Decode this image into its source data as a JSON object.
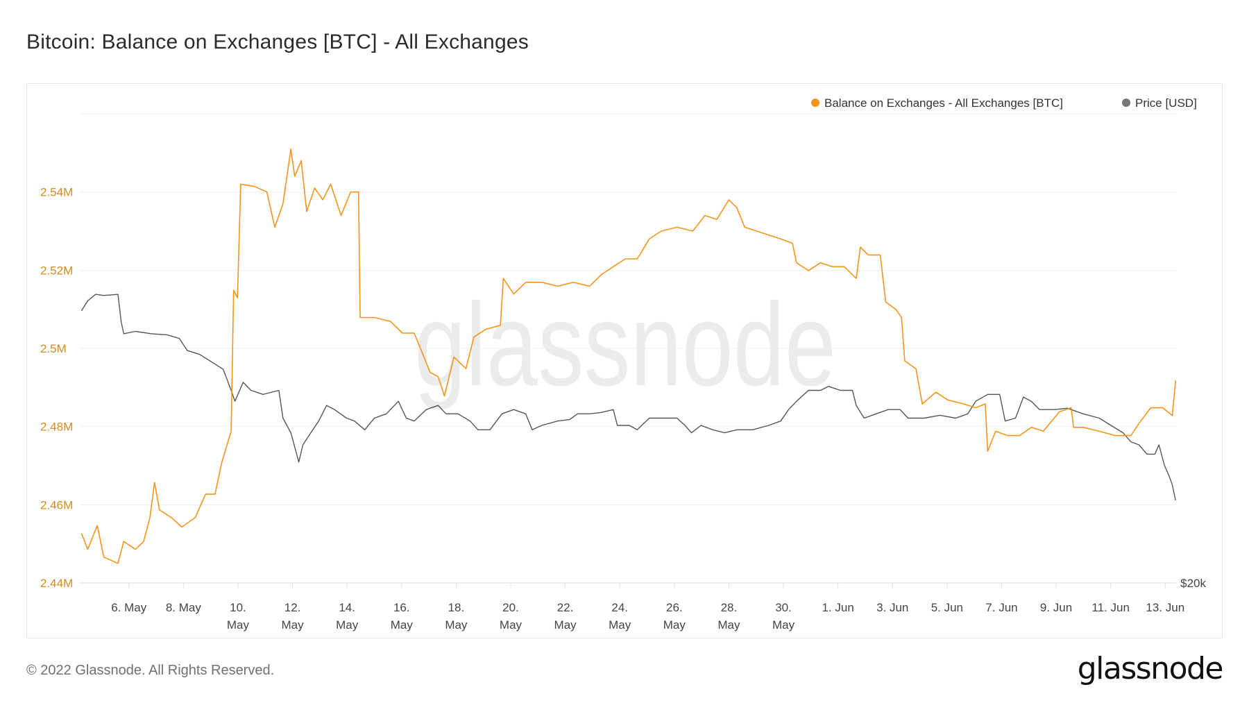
{
  "title": "Bitcoin: Balance on Exchanges [BTC] - All Exchanges",
  "footer": "© 2022 Glassnode. All Rights Reserved.",
  "logo": "glassnode",
  "watermark": "glassnode",
  "chart_data": {
    "type": "line",
    "title": "Bitcoin: Balance on Exchanges [BTC] - All Exchanges",
    "x_unit": "day (1 = 1 May 2022, 32 = 1 Jun 2022)",
    "xlim": [
      4.2,
      44.4
    ],
    "legend_position": "top-right",
    "grid": true,
    "colors": {
      "balance": "#f7931a",
      "price": "#555555",
      "axis_left": "#d98a1c",
      "axis_right": "#444444"
    },
    "legend": [
      "Balance on Exchanges - All Exchanges [BTC]",
      "Price [USD]"
    ],
    "y_left": {
      "ticks": [
        2.44,
        2.46,
        2.48,
        2.5,
        2.52,
        2.54,
        2.56
      ],
      "labels": [
        "2.44M",
        "2.46M",
        "2.48M",
        "2.5M",
        "2.52M",
        "2.54M",
        ""
      ],
      "ylim": [
        2.44,
        2.56
      ]
    },
    "y_right": {
      "scale": "log",
      "labels": [
        "$20k"
      ],
      "ticks": [
        20
      ]
    },
    "x_ticks": [
      {
        "day": 6,
        "l1": "6. May",
        "l2": ""
      },
      {
        "day": 8,
        "l1": "8. May",
        "l2": ""
      },
      {
        "day": 10,
        "l1": "10.",
        "l2": "May"
      },
      {
        "day": 12,
        "l1": "12.",
        "l2": "May"
      },
      {
        "day": 14,
        "l1": "14.",
        "l2": "May"
      },
      {
        "day": 16,
        "l1": "16.",
        "l2": "May"
      },
      {
        "day": 18,
        "l1": "18.",
        "l2": "May"
      },
      {
        "day": 20,
        "l1": "20.",
        "l2": "May"
      },
      {
        "day": 22,
        "l1": "22.",
        "l2": "May"
      },
      {
        "day": 24,
        "l1": "24.",
        "l2": "May"
      },
      {
        "day": 26,
        "l1": "26.",
        "l2": "May"
      },
      {
        "day": 28,
        "l1": "28.",
        "l2": "May"
      },
      {
        "day": 30,
        "l1": "30.",
        "l2": "May"
      },
      {
        "day": 32,
        "l1": "1. Jun",
        "l2": ""
      },
      {
        "day": 34,
        "l1": "3. Jun",
        "l2": ""
      },
      {
        "day": 36,
        "l1": "5. Jun",
        "l2": ""
      },
      {
        "day": 38,
        "l1": "7. Jun",
        "l2": ""
      },
      {
        "day": 40,
        "l1": "9. Jun",
        "l2": ""
      },
      {
        "day": 42,
        "l1": "11. Jun",
        "l2": ""
      },
      {
        "day": 44,
        "l1": "13. Jun",
        "l2": ""
      }
    ],
    "series": [
      {
        "name": "Balance on Exchanges - All Exchanges [BTC]",
        "unit": "M BTC",
        "points": [
          [
            4.26,
            2.4527
          ],
          [
            4.49,
            2.4486
          ],
          [
            4.84,
            2.4547
          ],
          [
            5.08,
            2.4466
          ],
          [
            5.6,
            2.445
          ],
          [
            5.81,
            2.4506
          ],
          [
            6.24,
            2.4486
          ],
          [
            6.54,
            2.4506
          ],
          [
            6.77,
            2.4567
          ],
          [
            6.94,
            2.4657
          ],
          [
            7.12,
            2.4587
          ],
          [
            7.56,
            2.4567
          ],
          [
            7.94,
            2.4543
          ],
          [
            8.43,
            2.4567
          ],
          [
            8.81,
            2.4627
          ],
          [
            9.16,
            2.4627
          ],
          [
            9.4,
            2.4707
          ],
          [
            9.75,
            2.4788
          ],
          [
            9.84,
            2.5149
          ],
          [
            9.98,
            2.5129
          ],
          [
            10.1,
            2.542
          ],
          [
            10.62,
            2.5414
          ],
          [
            11.06,
            2.54
          ],
          [
            11.35,
            2.531
          ],
          [
            11.65,
            2.537
          ],
          [
            11.94,
            2.551
          ],
          [
            12.08,
            2.544
          ],
          [
            12.32,
            2.548
          ],
          [
            12.52,
            2.535
          ],
          [
            12.81,
            2.541
          ],
          [
            13.11,
            2.538
          ],
          [
            13.4,
            2.542
          ],
          [
            13.78,
            2.534
          ],
          [
            14.13,
            2.54
          ],
          [
            14.42,
            2.54
          ],
          [
            14.48,
            2.5079
          ],
          [
            15.0,
            2.5079
          ],
          [
            15.59,
            2.5069
          ],
          [
            16.03,
            2.5039
          ],
          [
            16.46,
            2.5039
          ],
          [
            16.76,
            2.4988
          ],
          [
            17.05,
            2.4938
          ],
          [
            17.34,
            2.4928
          ],
          [
            17.57,
            2.4878
          ],
          [
            17.92,
            2.4978
          ],
          [
            18.36,
            2.4948
          ],
          [
            18.65,
            2.5029
          ],
          [
            19.09,
            2.5049
          ],
          [
            19.62,
            2.5059
          ],
          [
            19.73,
            2.5179
          ],
          [
            20.11,
            2.5139
          ],
          [
            20.55,
            2.5169
          ],
          [
            21.14,
            2.5169
          ],
          [
            21.72,
            2.5159
          ],
          [
            22.3,
            2.5169
          ],
          [
            22.89,
            2.5159
          ],
          [
            23.33,
            2.5189
          ],
          [
            23.76,
            2.5209
          ],
          [
            24.2,
            2.5229
          ],
          [
            24.64,
            2.5229
          ],
          [
            25.08,
            2.528
          ],
          [
            25.52,
            2.53
          ],
          [
            26.1,
            2.531
          ],
          [
            26.68,
            2.53
          ],
          [
            27.12,
            2.534
          ],
          [
            27.56,
            2.533
          ],
          [
            28.0,
            2.538
          ],
          [
            28.29,
            2.536
          ],
          [
            28.58,
            2.531
          ],
          [
            29.02,
            2.53
          ],
          [
            29.46,
            2.529
          ],
          [
            29.9,
            2.528
          ],
          [
            30.33,
            2.5269
          ],
          [
            30.48,
            2.5219
          ],
          [
            30.92,
            2.5199
          ],
          [
            31.36,
            2.5219
          ],
          [
            31.79,
            2.5209
          ],
          [
            32.23,
            2.5209
          ],
          [
            32.67,
            2.5179
          ],
          [
            32.82,
            2.5259
          ],
          [
            33.11,
            2.5239
          ],
          [
            33.55,
            2.5239
          ],
          [
            33.75,
            2.5119
          ],
          [
            34.13,
            2.5099
          ],
          [
            34.33,
            2.5079
          ],
          [
            34.45,
            2.4968
          ],
          [
            34.86,
            2.4948
          ],
          [
            35.09,
            2.4858
          ],
          [
            35.59,
            2.4888
          ],
          [
            36.03,
            2.4868
          ],
          [
            36.61,
            2.4858
          ],
          [
            37.05,
            2.4848
          ],
          [
            37.4,
            2.4858
          ],
          [
            37.49,
            2.4737
          ],
          [
            37.78,
            2.4788
          ],
          [
            38.22,
            2.4777
          ],
          [
            38.66,
            2.4777
          ],
          [
            39.09,
            2.4798
          ],
          [
            39.53,
            2.4788
          ],
          [
            40.12,
            2.4838
          ],
          [
            40.55,
            2.4848
          ],
          [
            40.64,
            2.4798
          ],
          [
            40.99,
            2.4798
          ],
          [
            41.58,
            2.4788
          ],
          [
            42.16,
            2.4777
          ],
          [
            42.74,
            2.4777
          ],
          [
            43.04,
            2.4808
          ],
          [
            43.47,
            2.4848
          ],
          [
            43.91,
            2.4848
          ],
          [
            44.26,
            2.4828
          ],
          [
            44.38,
            2.4918
          ]
        ]
      },
      {
        "name": "Price [USD]",
        "unit": "k USD",
        "points": [
          [
            4.26,
            38.0
          ],
          [
            4.49,
            38.9
          ],
          [
            4.78,
            39.5
          ],
          [
            5.08,
            39.4
          ],
          [
            5.6,
            39.5
          ],
          [
            5.72,
            37.0
          ],
          [
            5.81,
            36.0
          ],
          [
            6.24,
            36.2
          ],
          [
            6.83,
            36.0
          ],
          [
            7.41,
            35.9
          ],
          [
            7.85,
            35.6
          ],
          [
            8.14,
            34.6
          ],
          [
            8.58,
            34.3
          ],
          [
            9.02,
            33.7
          ],
          [
            9.46,
            33.1
          ],
          [
            9.75,
            31.5
          ],
          [
            9.89,
            30.7
          ],
          [
            10.19,
            32.1
          ],
          [
            10.48,
            31.5
          ],
          [
            10.92,
            31.2
          ],
          [
            11.5,
            31.5
          ],
          [
            11.65,
            29.5
          ],
          [
            11.94,
            28.5
          ],
          [
            12.23,
            26.6
          ],
          [
            12.38,
            27.7
          ],
          [
            12.67,
            28.5
          ],
          [
            12.96,
            29.3
          ],
          [
            13.25,
            30.4
          ],
          [
            13.54,
            30.1
          ],
          [
            13.98,
            29.5
          ],
          [
            14.27,
            29.3
          ],
          [
            14.65,
            28.7
          ],
          [
            15.0,
            29.5
          ],
          [
            15.44,
            29.8
          ],
          [
            15.88,
            30.7
          ],
          [
            16.17,
            29.5
          ],
          [
            16.46,
            29.3
          ],
          [
            16.9,
            30.1
          ],
          [
            17.34,
            30.4
          ],
          [
            17.63,
            29.8
          ],
          [
            18.07,
            29.8
          ],
          [
            18.51,
            29.3
          ],
          [
            18.8,
            28.7
          ],
          [
            19.24,
            28.7
          ],
          [
            19.68,
            29.8
          ],
          [
            20.11,
            30.1
          ],
          [
            20.55,
            29.8
          ],
          [
            20.79,
            28.7
          ],
          [
            21.14,
            29.0
          ],
          [
            21.72,
            29.3
          ],
          [
            22.16,
            29.4
          ],
          [
            22.45,
            29.8
          ],
          [
            22.89,
            29.8
          ],
          [
            23.33,
            29.9
          ],
          [
            23.76,
            30.1
          ],
          [
            23.91,
            29.0
          ],
          [
            24.35,
            29.0
          ],
          [
            24.64,
            28.7
          ],
          [
            25.08,
            29.5
          ],
          [
            25.52,
            29.5
          ],
          [
            26.1,
            29.5
          ],
          [
            26.39,
            29.0
          ],
          [
            26.63,
            28.5
          ],
          [
            26.98,
            29.0
          ],
          [
            27.41,
            28.7
          ],
          [
            27.85,
            28.5
          ],
          [
            28.29,
            28.7
          ],
          [
            28.87,
            28.7
          ],
          [
            29.46,
            29.0
          ],
          [
            29.9,
            29.3
          ],
          [
            30.19,
            30.1
          ],
          [
            30.48,
            30.7
          ],
          [
            30.92,
            31.5
          ],
          [
            31.36,
            31.5
          ],
          [
            31.65,
            31.8
          ],
          [
            32.09,
            31.5
          ],
          [
            32.53,
            31.5
          ],
          [
            32.67,
            30.4
          ],
          [
            32.96,
            29.5
          ],
          [
            33.4,
            29.8
          ],
          [
            33.84,
            30.1
          ],
          [
            34.28,
            30.1
          ],
          [
            34.57,
            29.5
          ],
          [
            35.16,
            29.5
          ],
          [
            35.74,
            29.7
          ],
          [
            36.32,
            29.5
          ],
          [
            36.76,
            29.8
          ],
          [
            37.05,
            30.7
          ],
          [
            37.49,
            31.2
          ],
          [
            37.93,
            31.2
          ],
          [
            38.13,
            29.3
          ],
          [
            38.51,
            29.5
          ],
          [
            38.8,
            31.0
          ],
          [
            39.09,
            30.7
          ],
          [
            39.39,
            30.1
          ],
          [
            39.97,
            30.1
          ],
          [
            40.41,
            30.2
          ],
          [
            40.99,
            29.8
          ],
          [
            41.58,
            29.5
          ],
          [
            42.01,
            29.0
          ],
          [
            42.45,
            28.5
          ],
          [
            42.74,
            27.9
          ],
          [
            43.04,
            27.7
          ],
          [
            43.33,
            27.1
          ],
          [
            43.62,
            27.1
          ],
          [
            43.77,
            27.7
          ],
          [
            43.97,
            26.4
          ],
          [
            44.15,
            25.7
          ],
          [
            44.26,
            25.2
          ],
          [
            44.38,
            24.3
          ]
        ]
      }
    ]
  }
}
